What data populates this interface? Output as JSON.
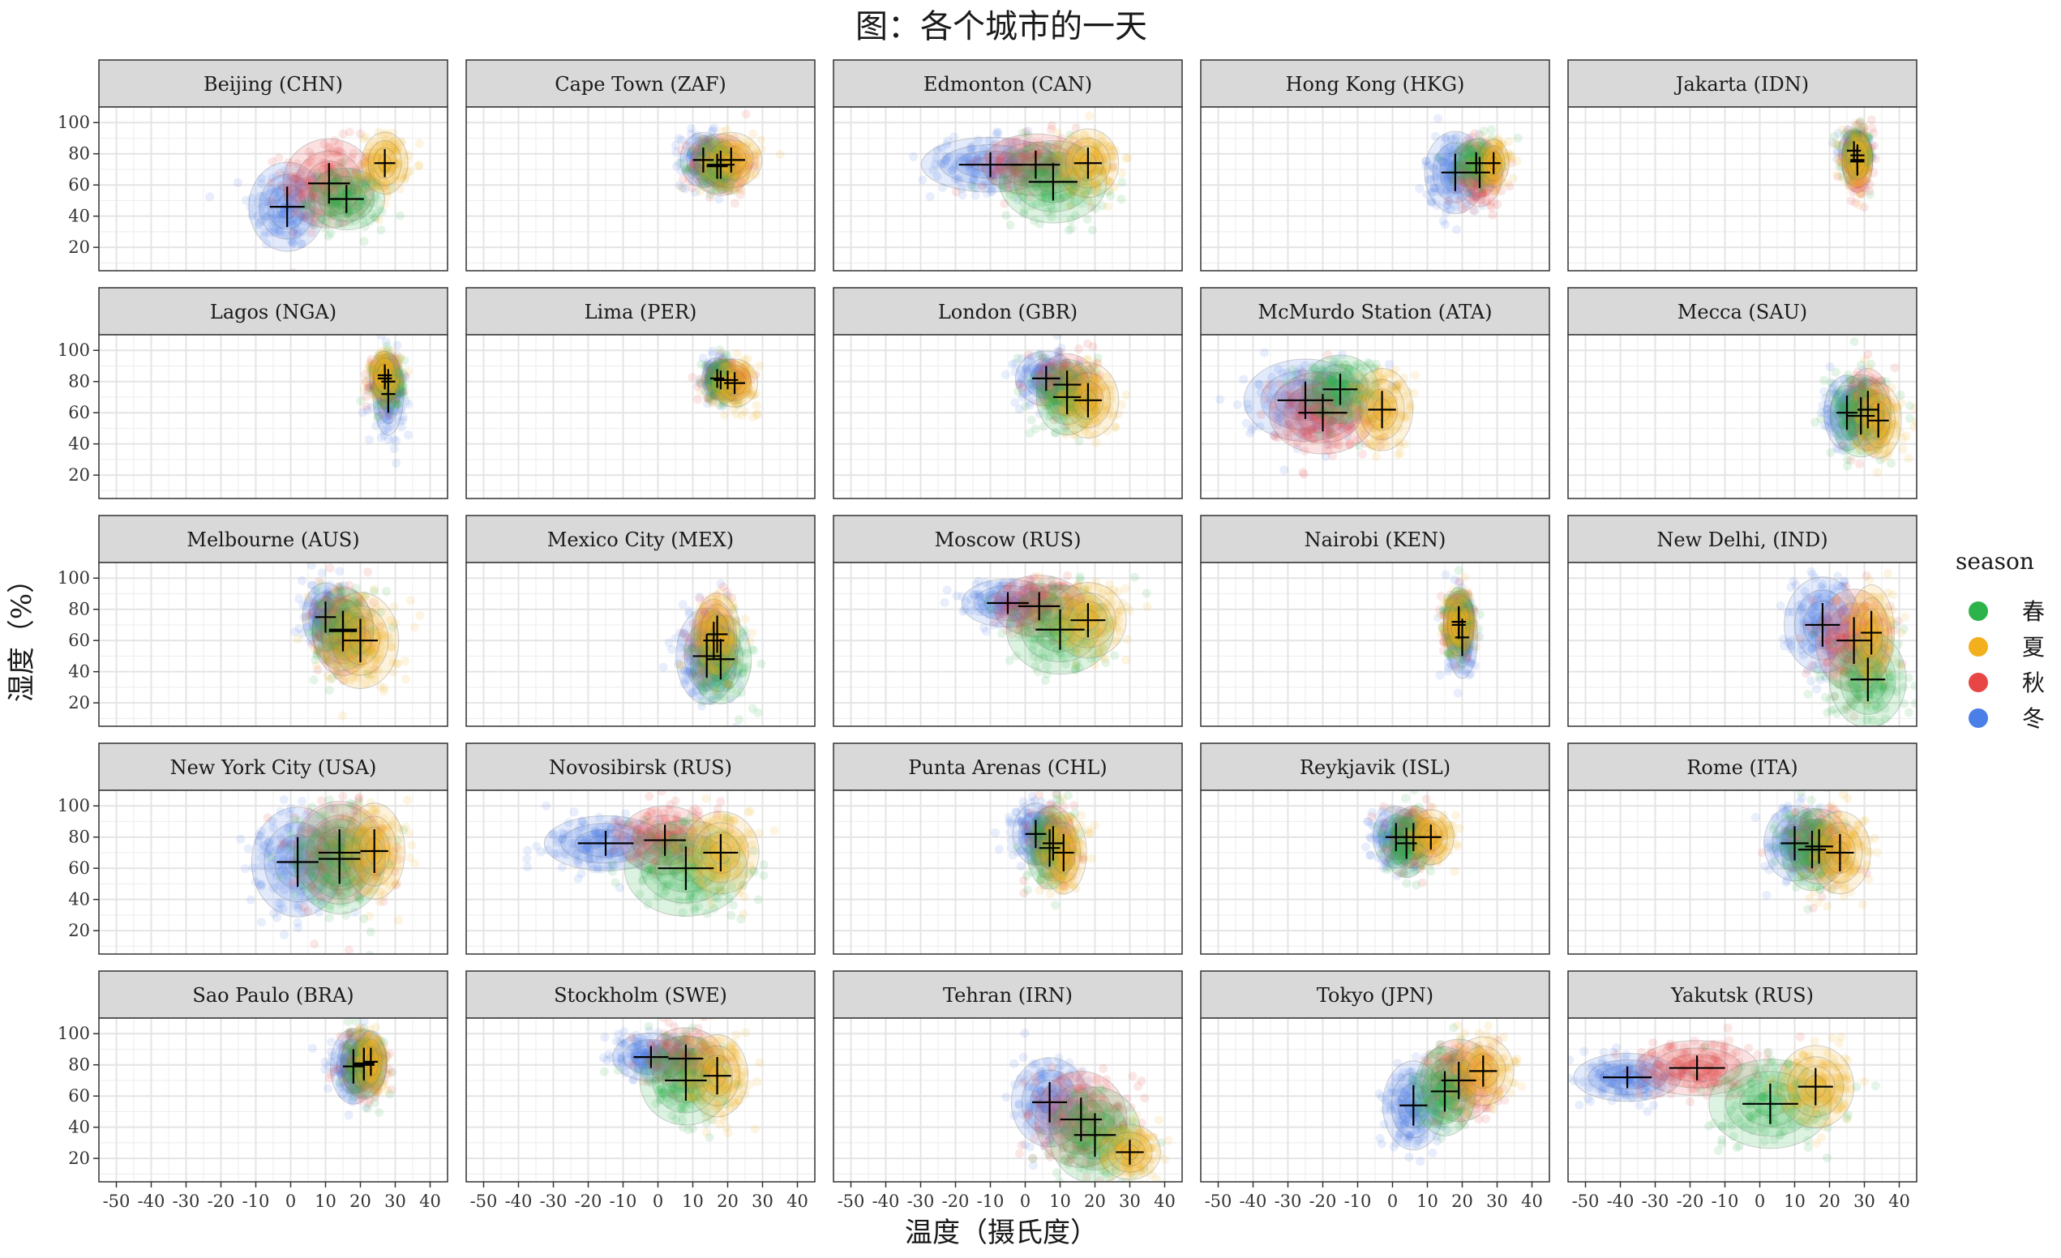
{
  "chart_data": {
    "type": "scatter",
    "title": "图：各个城市的一天",
    "xlabel": "温度（摄氏度）",
    "ylabel": "湿度（%）",
    "xlim": [
      -55,
      45
    ],
    "ylim": [
      5,
      110
    ],
    "x_ticks": [
      -50,
      -40,
      -30,
      -20,
      -10,
      0,
      10,
      20,
      30,
      40
    ],
    "y_ticks": [
      20,
      40,
      60,
      80,
      100
    ],
    "grid": true,
    "legend": {
      "title": "season",
      "placement": "right",
      "items": [
        {
          "label": "春",
          "color": "#2db34a"
        },
        {
          "label": "夏",
          "color": "#f2b01e"
        },
        {
          "label": "秋",
          "color": "#e84545"
        },
        {
          "label": "冬",
          "color": "#4a7fe8"
        }
      ]
    },
    "panels": [
      {
        "label": "Beijing (CHN)",
        "seasons": [
          {
            "season": "春",
            "x": 16,
            "y": 51,
            "sx": 5,
            "sy": 9
          },
          {
            "season": "夏",
            "x": 27,
            "y": 74,
            "sx": 3,
            "sy": 9
          },
          {
            "season": "秋",
            "x": 11,
            "y": 61,
            "sx": 6,
            "sy": 13
          },
          {
            "season": "冬",
            "x": -1,
            "y": 46,
            "sx": 5,
            "sy": 13
          }
        ]
      },
      {
        "label": "Cape Town (ZAF)",
        "seasons": [
          {
            "season": "春",
            "x": 17,
            "y": 72,
            "sx": 3,
            "sy": 8
          },
          {
            "season": "夏",
            "x": 21,
            "y": 76,
            "sx": 4,
            "sy": 8
          },
          {
            "season": "秋",
            "x": 18,
            "y": 73,
            "sx": 4,
            "sy": 9
          },
          {
            "season": "冬",
            "x": 13,
            "y": 76,
            "sx": 3,
            "sy": 8
          }
        ]
      },
      {
        "label": "Edmonton (CAN)",
        "seasons": [
          {
            "season": "春",
            "x": 8,
            "y": 62,
            "sx": 7,
            "sy": 12
          },
          {
            "season": "夏",
            "x": 18,
            "y": 74,
            "sx": 4,
            "sy": 10
          },
          {
            "season": "秋",
            "x": 3,
            "y": 73,
            "sx": 7,
            "sy": 9
          },
          {
            "season": "冬",
            "x": -10,
            "y": 73,
            "sx": 9,
            "sy": 8
          }
        ]
      },
      {
        "label": "Hong Kong (HKG)",
        "seasons": [
          {
            "season": "春",
            "x": 24,
            "y": 74,
            "sx": 3,
            "sy": 7
          },
          {
            "season": "夏",
            "x": 29,
            "y": 74,
            "sx": 2,
            "sy": 7
          },
          {
            "season": "秋",
            "x": 25,
            "y": 68,
            "sx": 3,
            "sy": 10
          },
          {
            "season": "冬",
            "x": 18,
            "y": 68,
            "sx": 4,
            "sy": 12
          }
        ]
      },
      {
        "label": "Jakarta (IDN)",
        "seasons": [
          {
            "season": "春",
            "x": 28,
            "y": 79,
            "sx": 2,
            "sy": 7
          },
          {
            "season": "夏",
            "x": 28,
            "y": 76,
            "sx": 2,
            "sy": 8
          },
          {
            "season": "秋",
            "x": 28,
            "y": 75,
            "sx": 2,
            "sy": 9
          },
          {
            "season": "冬",
            "x": 27,
            "y": 82,
            "sx": 2,
            "sy": 6
          }
        ]
      },
      {
        "label": "Lagos (NGA)",
        "seasons": [
          {
            "season": "春",
            "x": 28,
            "y": 80,
            "sx": 2,
            "sy": 8
          },
          {
            "season": "夏",
            "x": 27,
            "y": 84,
            "sx": 2,
            "sy": 7
          },
          {
            "season": "秋",
            "x": 27,
            "y": 82,
            "sx": 2,
            "sy": 7
          },
          {
            "season": "冬",
            "x": 28,
            "y": 72,
            "sx": 2,
            "sy": 12
          }
        ]
      },
      {
        "label": "Lima (PER)",
        "seasons": [
          {
            "season": "春",
            "x": 18,
            "y": 81,
            "sx": 2,
            "sy": 6
          },
          {
            "season": "夏",
            "x": 22,
            "y": 79,
            "sx": 3,
            "sy": 7
          },
          {
            "season": "秋",
            "x": 20,
            "y": 81,
            "sx": 3,
            "sy": 6
          },
          {
            "season": "冬",
            "x": 17,
            "y": 82,
            "sx": 2,
            "sy": 6
          }
        ]
      },
      {
        "label": "London (GBR)",
        "seasons": [
          {
            "season": "春",
            "x": 12,
            "y": 70,
            "sx": 4,
            "sy": 11
          },
          {
            "season": "夏",
            "x": 18,
            "y": 68,
            "sx": 4,
            "sy": 11
          },
          {
            "season": "秋",
            "x": 12,
            "y": 78,
            "sx": 4,
            "sy": 9
          },
          {
            "season": "冬",
            "x": 6,
            "y": 82,
            "sx": 4,
            "sy": 8
          }
        ]
      },
      {
        "label": "McMurdo Station (ATA)",
        "seasons": [
          {
            "season": "春",
            "x": -15,
            "y": 75,
            "sx": 5,
            "sy": 10
          },
          {
            "season": "夏",
            "x": -3,
            "y": 62,
            "sx": 4,
            "sy": 12
          },
          {
            "season": "秋",
            "x": -20,
            "y": 60,
            "sx": 7,
            "sy": 12
          },
          {
            "season": "冬",
            "x": -25,
            "y": 68,
            "sx": 8,
            "sy": 12
          }
        ]
      },
      {
        "label": "Mecca (SAU)",
        "seasons": [
          {
            "season": "春",
            "x": 29,
            "y": 58,
            "sx": 4,
            "sy": 12
          },
          {
            "season": "夏",
            "x": 34,
            "y": 55,
            "sx": 3,
            "sy": 11
          },
          {
            "season": "秋",
            "x": 31,
            "y": 62,
            "sx": 3,
            "sy": 12
          },
          {
            "season": "冬",
            "x": 25,
            "y": 60,
            "sx": 3,
            "sy": 11
          }
        ]
      },
      {
        "label": "Melbourne (AUS)",
        "seasons": [
          {
            "season": "春",
            "x": 15,
            "y": 67,
            "sx": 4,
            "sy": 12
          },
          {
            "season": "夏",
            "x": 20,
            "y": 60,
            "sx": 5,
            "sy": 14
          },
          {
            "season": "秋",
            "x": 15,
            "y": 66,
            "sx": 4,
            "sy": 13
          },
          {
            "season": "冬",
            "x": 10,
            "y": 75,
            "sx": 3,
            "sy": 10
          }
        ]
      },
      {
        "label": "Mexico City (MEX)",
        "seasons": [
          {
            "season": "春",
            "x": 18,
            "y": 48,
            "sx": 4,
            "sy": 13
          },
          {
            "season": "夏",
            "x": 17,
            "y": 64,
            "sx": 3,
            "sy": 12
          },
          {
            "season": "秋",
            "x": 16,
            "y": 60,
            "sx": 3,
            "sy": 12
          },
          {
            "season": "冬",
            "x": 14,
            "y": 50,
            "sx": 4,
            "sy": 14
          }
        ]
      },
      {
        "label": "Moscow (RUS)",
        "seasons": [
          {
            "season": "春",
            "x": 10,
            "y": 67,
            "sx": 7,
            "sy": 13
          },
          {
            "season": "夏",
            "x": 18,
            "y": 73,
            "sx": 5,
            "sy": 11
          },
          {
            "season": "秋",
            "x": 4,
            "y": 82,
            "sx": 6,
            "sy": 9
          },
          {
            "season": "冬",
            "x": -5,
            "y": 84,
            "sx": 6,
            "sy": 7
          }
        ]
      },
      {
        "label": "Nairobi (KEN)",
        "seasons": [
          {
            "season": "春",
            "x": 19,
            "y": 72,
            "sx": 2,
            "sy": 10
          },
          {
            "season": "夏",
            "x": 19,
            "y": 70,
            "sx": 2,
            "sy": 9
          },
          {
            "season": "秋",
            "x": 19,
            "y": 72,
            "sx": 2,
            "sy": 9
          },
          {
            "season": "冬",
            "x": 20,
            "y": 62,
            "sx": 2,
            "sy": 12
          }
        ]
      },
      {
        "label": "New Delhi, (IND)",
        "seasons": [
          {
            "season": "春",
            "x": 31,
            "y": 35,
            "sx": 5,
            "sy": 14
          },
          {
            "season": "夏",
            "x": 32,
            "y": 65,
            "sx": 3,
            "sy": 14
          },
          {
            "season": "秋",
            "x": 27,
            "y": 60,
            "sx": 5,
            "sy": 15
          },
          {
            "season": "冬",
            "x": 18,
            "y": 70,
            "sx": 5,
            "sy": 14
          }
        ]
      },
      {
        "label": "New York City (USA)",
        "seasons": [
          {
            "season": "春",
            "x": 14,
            "y": 66,
            "sx": 6,
            "sy": 16
          },
          {
            "season": "夏",
            "x": 24,
            "y": 71,
            "sx": 4,
            "sy": 14
          },
          {
            "season": "秋",
            "x": 14,
            "y": 70,
            "sx": 6,
            "sy": 15
          },
          {
            "season": "冬",
            "x": 2,
            "y": 64,
            "sx": 6,
            "sy": 16
          }
        ]
      },
      {
        "label": "Novosibirsk (RUS)",
        "seasons": [
          {
            "season": "春",
            "x": 8,
            "y": 60,
            "sx": 8,
            "sy": 14
          },
          {
            "season": "夏",
            "x": 18,
            "y": 70,
            "sx": 5,
            "sy": 12
          },
          {
            "season": "秋",
            "x": 2,
            "y": 78,
            "sx": 6,
            "sy": 10
          },
          {
            "season": "冬",
            "x": -15,
            "y": 76,
            "sx": 8,
            "sy": 8
          }
        ]
      },
      {
        "label": "Punta Arenas (CHL)",
        "seasons": [
          {
            "season": "春",
            "x": 7,
            "y": 73,
            "sx": 3,
            "sy": 12
          },
          {
            "season": "夏",
            "x": 11,
            "y": 70,
            "sx": 3,
            "sy": 12
          },
          {
            "season": "秋",
            "x": 8,
            "y": 76,
            "sx": 3,
            "sy": 11
          },
          {
            "season": "冬",
            "x": 3,
            "y": 82,
            "sx": 3,
            "sy": 9
          }
        ]
      },
      {
        "label": "Reykjavik (ISL)",
        "seasons": [
          {
            "season": "春",
            "x": 4,
            "y": 76,
            "sx": 3,
            "sy": 10
          },
          {
            "season": "夏",
            "x": 11,
            "y": 80,
            "sx": 3,
            "sy": 8
          },
          {
            "season": "秋",
            "x": 6,
            "y": 80,
            "sx": 3,
            "sy": 9
          },
          {
            "season": "冬",
            "x": 1,
            "y": 80,
            "sx": 3,
            "sy": 9
          }
        ]
      },
      {
        "label": "Rome (ITA)",
        "seasons": [
          {
            "season": "春",
            "x": 15,
            "y": 72,
            "sx": 4,
            "sy": 12
          },
          {
            "season": "夏",
            "x": 23,
            "y": 70,
            "sx": 4,
            "sy": 12
          },
          {
            "season": "秋",
            "x": 17,
            "y": 74,
            "sx": 4,
            "sy": 11
          },
          {
            "season": "冬",
            "x": 10,
            "y": 76,
            "sx": 4,
            "sy": 11
          }
        ]
      },
      {
        "label": "Sao Paulo (BRA)",
        "seasons": [
          {
            "season": "春",
            "x": 21,
            "y": 81,
            "sx": 3,
            "sy": 10
          },
          {
            "season": "夏",
            "x": 23,
            "y": 82,
            "sx": 2,
            "sy": 9
          },
          {
            "season": "秋",
            "x": 21,
            "y": 80,
            "sx": 3,
            "sy": 10
          },
          {
            "season": "冬",
            "x": 18,
            "y": 79,
            "sx": 3,
            "sy": 11
          }
        ]
      },
      {
        "label": "Stockholm (SWE)",
        "seasons": [
          {
            "season": "春",
            "x": 8,
            "y": 70,
            "sx": 6,
            "sy": 13
          },
          {
            "season": "夏",
            "x": 17,
            "y": 73,
            "sx": 4,
            "sy": 12
          },
          {
            "season": "秋",
            "x": 8,
            "y": 84,
            "sx": 5,
            "sy": 9
          },
          {
            "season": "冬",
            "x": -2,
            "y": 85,
            "sx": 5,
            "sy": 7
          }
        ]
      },
      {
        "label": "Tehran (IRN)",
        "seasons": [
          {
            "season": "春",
            "x": 20,
            "y": 35,
            "sx": 6,
            "sy": 14
          },
          {
            "season": "夏",
            "x": 30,
            "y": 24,
            "sx": 4,
            "sy": 8
          },
          {
            "season": "秋",
            "x": 16,
            "y": 45,
            "sx": 6,
            "sy": 14
          },
          {
            "season": "冬",
            "x": 7,
            "y": 56,
            "sx": 5,
            "sy": 13
          }
        ]
      },
      {
        "label": "Tokyo (JPN)",
        "seasons": [
          {
            "season": "春",
            "x": 15,
            "y": 63,
            "sx": 4,
            "sy": 13
          },
          {
            "season": "夏",
            "x": 26,
            "y": 76,
            "sx": 4,
            "sy": 10
          },
          {
            "season": "秋",
            "x": 19,
            "y": 70,
            "sx": 5,
            "sy": 12
          },
          {
            "season": "冬",
            "x": 6,
            "y": 54,
            "sx": 4,
            "sy": 13
          }
        ]
      },
      {
        "label": "Yakutsk (RUS)",
        "seasons": [
          {
            "season": "春",
            "x": 3,
            "y": 55,
            "sx": 8,
            "sy": 13
          },
          {
            "season": "夏",
            "x": 16,
            "y": 66,
            "sx": 5,
            "sy": 12
          },
          {
            "season": "秋",
            "x": -18,
            "y": 78,
            "sx": 8,
            "sy": 8
          },
          {
            "season": "冬",
            "x": -38,
            "y": 72,
            "sx": 7,
            "sy": 7
          }
        ]
      }
    ]
  }
}
